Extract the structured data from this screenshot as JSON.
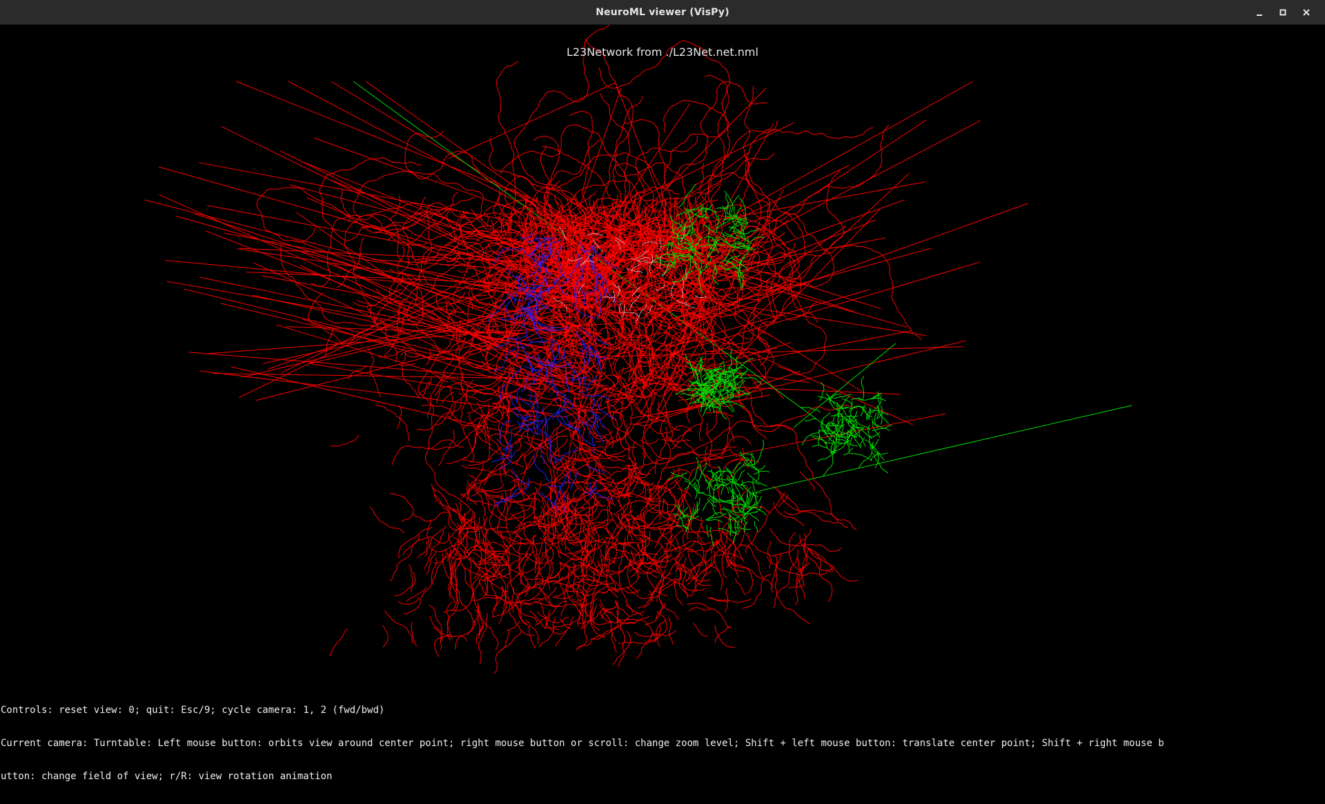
{
  "window": {
    "title": "NeuroML viewer (VisPy)",
    "controls": [
      "minimize-icon",
      "maximize-icon",
      "close-icon"
    ]
  },
  "scene": {
    "title": "L23Network from ./L23Net.net.nml",
    "background": "#000000",
    "colors": {
      "population_a": "#ff0000",
      "population_b": "#00e000",
      "population_c": "#2020ff",
      "highlight": "#ffffff"
    }
  },
  "help": {
    "line1": "Controls: reset view: 0; quit: Esc/9; cycle camera: 1, 2 (fwd/bwd)",
    "line2": "Current camera: Turntable: Left mouse button: orbits view around center point; right mouse button or scroll: change zoom level; Shift + left mouse button: translate center point; Shift + right mouse b",
    "line3": "utton: change field of view; r/R: view rotation animation"
  }
}
